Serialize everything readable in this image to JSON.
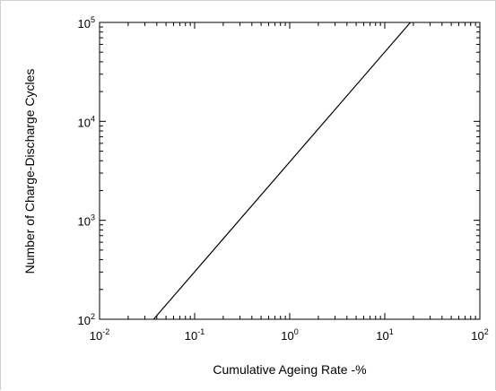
{
  "chart_data": {
    "type": "line",
    "xlabel": "Cumulative Ageing Rate -%",
    "ylabel": "Number of Charge-Discharge Cycles",
    "x_scale": "log",
    "y_scale": "log",
    "xlim": [
      0.01,
      100
    ],
    "ylim": [
      100,
      100000
    ],
    "grid": false,
    "x_ticks": [
      {
        "base": "10",
        "exp": "-2"
      },
      {
        "base": "10",
        "exp": "-1"
      },
      {
        "base": "10",
        "exp": "0"
      },
      {
        "base": "10",
        "exp": "1"
      },
      {
        "base": "10",
        "exp": "2"
      }
    ],
    "y_ticks": [
      {
        "base": "10",
        "exp": "2"
      },
      {
        "base": "10",
        "exp": "3"
      },
      {
        "base": "10",
        "exp": "4"
      },
      {
        "base": "10",
        "exp": "5"
      }
    ],
    "series": [
      {
        "x": [
          0.037,
          18.6
        ],
        "y": [
          100,
          100000
        ]
      }
    ],
    "colors": {
      "line": "#000000",
      "axes": "#000000"
    }
  }
}
